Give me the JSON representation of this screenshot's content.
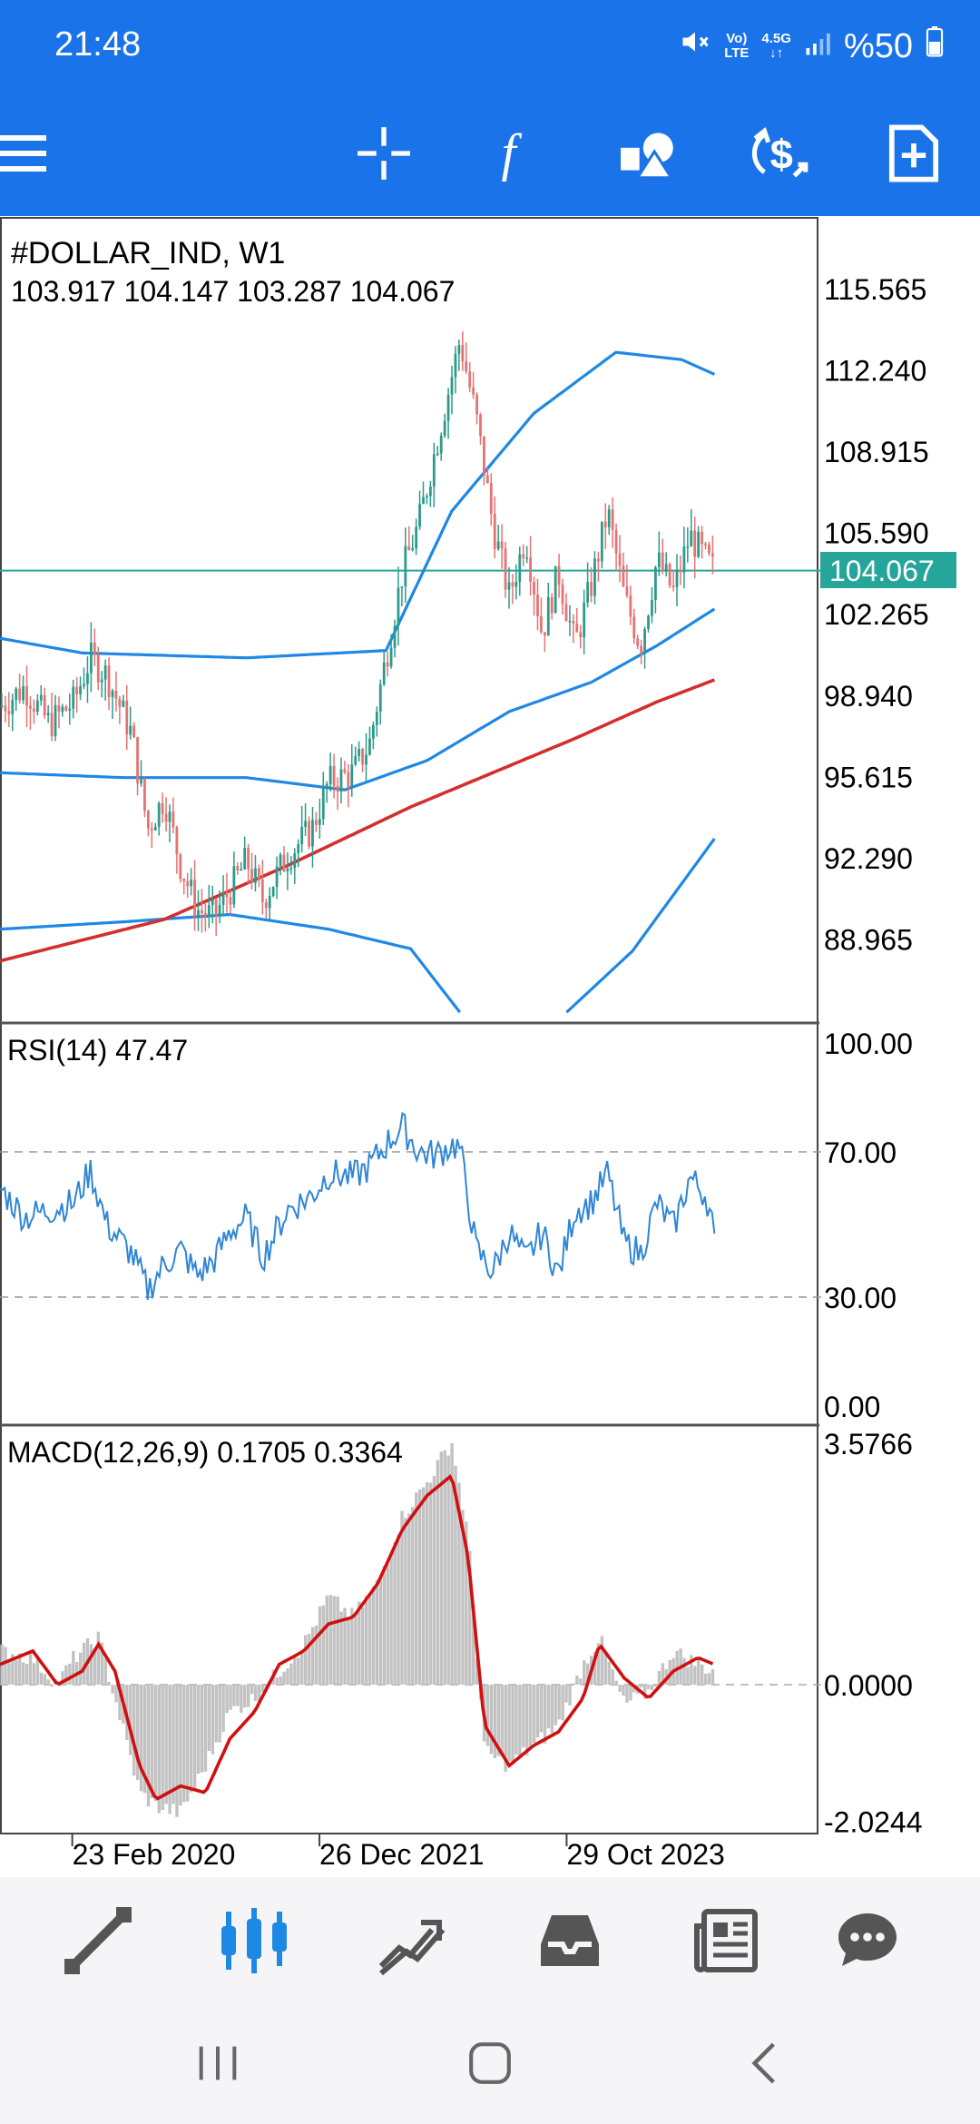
{
  "status_bar": {
    "time": "21:48",
    "volte_top": "Vo)",
    "volte_bottom": "LTE",
    "net_top": "4.5G",
    "net_bottom": "↓↑",
    "battery": "%50",
    "icons": [
      "mute-icon",
      "volte-icon",
      "network-icon",
      "signal-icon",
      "battery-icon"
    ]
  },
  "toolbar": {
    "icons": [
      "menu-icon",
      "crosshair-icon",
      "indicators-icon",
      "objects-icon",
      "trade-icon",
      "new-order-icon"
    ],
    "indicators_glyph": "f"
  },
  "chart": {
    "symbol_label": "#DOLLAR_IND, W1",
    "ohlc_label": "103.917 104.147 103.287 104.067",
    "current_price": "104.067",
    "colors": {
      "background": "#ffffff",
      "bollinger": "#1e88e5",
      "ma": "#d32f2f",
      "price_line": "#26a69a",
      "bull_candle": "#2e9a8a",
      "bear_candle": "#e57373",
      "rsi": "#2f86d6",
      "macd_hist": "#c2c2c2",
      "macd_signal": "#d01010"
    }
  },
  "rsi": {
    "label": "RSI(14) 47.47"
  },
  "macd": {
    "label": "MACD(12,26,9) 0.1705 0.3364"
  },
  "chart_data": [
    {
      "type": "candlestick",
      "title": "#DOLLAR_IND, W1",
      "y_ticks": [
        "115.565",
        "112.240",
        "108.915",
        "105.590",
        "102.265",
        "98.940",
        "95.615",
        "92.290",
        "88.965"
      ],
      "ylim": [
        85.6,
        118.5
      ],
      "current_price": 104.067,
      "x_tick_labels": [
        "23 Feb 2020",
        "26 Dec 2021",
        "29 Oct 2023"
      ],
      "price_path": [
        [
          0,
          98.5
        ],
        [
          0.03,
          99.3
        ],
        [
          0.06,
          97.8
        ],
        [
          0.09,
          98.7
        ],
        [
          0.11,
          100.5
        ],
        [
          0.13,
          99.8
        ],
        [
          0.16,
          97.4
        ],
        [
          0.18,
          93.5
        ],
        [
          0.2,
          94.8
        ],
        [
          0.22,
          92.0
        ],
        [
          0.24,
          90.2
        ],
        [
          0.26,
          89.9
        ],
        [
          0.28,
          91.0
        ],
        [
          0.3,
          92.2
        ],
        [
          0.32,
          90.6
        ],
        [
          0.35,
          92.4
        ],
        [
          0.38,
          93.5
        ],
        [
          0.4,
          95.4
        ],
        [
          0.43,
          95.8
        ],
        [
          0.45,
          97.0
        ],
        [
          0.47,
          100.5
        ],
        [
          0.49,
          104.0
        ],
        [
          0.51,
          106.0
        ],
        [
          0.53,
          109.0
        ],
        [
          0.55,
          112.0
        ],
        [
          0.56,
          113.5
        ],
        [
          0.58,
          110.3
        ],
        [
          0.6,
          106.0
        ],
        [
          0.62,
          103.0
        ],
        [
          0.64,
          105.5
        ],
        [
          0.66,
          101.5
        ],
        [
          0.68,
          104.0
        ],
        [
          0.7,
          101.0
        ],
        [
          0.72,
          103.5
        ],
        [
          0.74,
          106.5
        ],
        [
          0.76,
          103.0
        ],
        [
          0.78,
          101.0
        ],
        [
          0.8,
          104.5
        ],
        [
          0.82,
          103.2
        ],
        [
          0.84,
          105.5
        ],
        [
          0.86,
          104.5
        ],
        [
          0.87,
          104.067
        ]
      ],
      "moving_average": [
        [
          0,
          88.1
        ],
        [
          0.2,
          89.8
        ],
        [
          0.35,
          92.0
        ],
        [
          0.5,
          94.4
        ],
        [
          0.6,
          95.8
        ],
        [
          0.7,
          97.2
        ],
        [
          0.8,
          98.7
        ],
        [
          0.87,
          99.6
        ]
      ],
      "bollinger_upper": [
        [
          0,
          101.3
        ],
        [
          0.1,
          100.7
        ],
        [
          0.3,
          100.5
        ],
        [
          0.47,
          100.8
        ],
        [
          0.55,
          106.5
        ],
        [
          0.65,
          110.5
        ],
        [
          0.75,
          113.0
        ],
        [
          0.83,
          112.7
        ],
        [
          0.87,
          112.1
        ]
      ],
      "bollinger_middle": [
        [
          0,
          95.8
        ],
        [
          0.15,
          95.6
        ],
        [
          0.3,
          95.6
        ],
        [
          0.42,
          95.1
        ],
        [
          0.52,
          96.3
        ],
        [
          0.62,
          98.3
        ],
        [
          0.72,
          99.5
        ],
        [
          0.8,
          101.0
        ],
        [
          0.87,
          102.5
        ]
      ],
      "bollinger_lower": [
        [
          0,
          89.4
        ],
        [
          0.15,
          89.7
        ],
        [
          0.28,
          90.0
        ],
        [
          0.4,
          89.4
        ],
        [
          0.5,
          88.6
        ],
        [
          0.56,
          86.0
        ]
      ],
      "bollinger_lower_2": [
        [
          0.69,
          86.0
        ],
        [
          0.77,
          88.5
        ],
        [
          0.87,
          93.1
        ]
      ]
    },
    {
      "type": "line",
      "title": "RSI(14) 47.47",
      "y_ticks": [
        "100.00",
        "70.00",
        "30.00",
        "0.00"
      ],
      "ylim": [
        0,
        100
      ],
      "levels": [
        70,
        30
      ],
      "series": [
        {
          "values": [
            [
              0,
              60
            ],
            [
              0.03,
              52
            ],
            [
              0.06,
              54
            ],
            [
              0.09,
              56
            ],
            [
              0.11,
              65
            ],
            [
              0.13,
              50
            ],
            [
              0.16,
              42
            ],
            [
              0.18,
              32
            ],
            [
              0.2,
              39
            ],
            [
              0.22,
              43
            ],
            [
              0.24,
              36
            ],
            [
              0.26,
              40
            ],
            [
              0.28,
              48
            ],
            [
              0.3,
              52
            ],
            [
              0.32,
              41
            ],
            [
              0.35,
              54
            ],
            [
              0.38,
              58
            ],
            [
              0.4,
              64
            ],
            [
              0.43,
              63
            ],
            [
              0.45,
              66
            ],
            [
              0.47,
              72
            ],
            [
              0.49,
              77
            ],
            [
              0.51,
              70
            ],
            [
              0.53,
              69
            ],
            [
              0.55,
              72
            ],
            [
              0.56,
              71
            ],
            [
              0.58,
              43
            ],
            [
              0.6,
              37
            ],
            [
              0.62,
              48
            ],
            [
              0.64,
              40
            ],
            [
              0.66,
              48
            ],
            [
              0.68,
              36
            ],
            [
              0.7,
              54
            ],
            [
              0.72,
              56
            ],
            [
              0.74,
              64
            ],
            [
              0.76,
              45
            ],
            [
              0.78,
              42
            ],
            [
              0.8,
              56
            ],
            [
              0.82,
              49
            ],
            [
              0.84,
              63
            ],
            [
              0.86,
              58
            ],
            [
              0.87,
              47.47
            ]
          ]
        }
      ]
    },
    {
      "type": "bar",
      "title": "MACD(12,26,9) 0.1705 0.3364",
      "y_ticks": [
        "3.5766",
        "0.0000",
        "-2.0244"
      ],
      "ylim": [
        -2.2,
        3.7
      ],
      "histogram": [
        [
          0,
          0.5
        ],
        [
          0.04,
          0.4
        ],
        [
          0.07,
          0.0
        ],
        [
          0.09,
          0.4
        ],
        [
          0.12,
          0.7
        ],
        [
          0.14,
          -0.2
        ],
        [
          0.17,
          -1.6
        ],
        [
          0.19,
          -1.8
        ],
        [
          0.22,
          -1.9
        ],
        [
          0.25,
          -1.2
        ],
        [
          0.28,
          -0.4
        ],
        [
          0.31,
          -0.2
        ],
        [
          0.34,
          0.2
        ],
        [
          0.37,
          0.6
        ],
        [
          0.4,
          1.3
        ],
        [
          0.43,
          1.0
        ],
        [
          0.46,
          1.5
        ],
        [
          0.49,
          2.5
        ],
        [
          0.52,
          3.0
        ],
        [
          0.55,
          3.6
        ],
        [
          0.57,
          2.2
        ],
        [
          0.59,
          -1.0
        ],
        [
          0.62,
          -1.2
        ],
        [
          0.65,
          -0.9
        ],
        [
          0.68,
          -0.6
        ],
        [
          0.71,
          0.3
        ],
        [
          0.73,
          0.7
        ],
        [
          0.76,
          -0.3
        ],
        [
          0.79,
          -0.1
        ],
        [
          0.82,
          0.5
        ],
        [
          0.85,
          0.3
        ],
        [
          0.87,
          0.2
        ]
      ],
      "signal": [
        [
          0,
          0.3
        ],
        [
          0.04,
          0.5
        ],
        [
          0.07,
          0.0
        ],
        [
          0.1,
          0.2
        ],
        [
          0.12,
          0.6
        ],
        [
          0.14,
          0.2
        ],
        [
          0.17,
          -1.2
        ],
        [
          0.19,
          -1.7
        ],
        [
          0.22,
          -1.5
        ],
        [
          0.25,
          -1.6
        ],
        [
          0.28,
          -0.8
        ],
        [
          0.31,
          -0.4
        ],
        [
          0.34,
          0.3
        ],
        [
          0.37,
          0.5
        ],
        [
          0.4,
          0.9
        ],
        [
          0.43,
          1.0
        ],
        [
          0.46,
          1.5
        ],
        [
          0.49,
          2.3
        ],
        [
          0.52,
          2.8
        ],
        [
          0.55,
          3.1
        ],
        [
          0.57,
          1.9
        ],
        [
          0.59,
          -0.6
        ],
        [
          0.62,
          -1.2
        ],
        [
          0.65,
          -0.9
        ],
        [
          0.68,
          -0.7
        ],
        [
          0.71,
          -0.2
        ],
        [
          0.73,
          0.6
        ],
        [
          0.76,
          0.1
        ],
        [
          0.79,
          -0.2
        ],
        [
          0.82,
          0.2
        ],
        [
          0.85,
          0.4
        ],
        [
          0.87,
          0.3
        ]
      ]
    }
  ],
  "bottom_nav": {
    "items": [
      "quotes-icon",
      "chart-icon",
      "trade-icon",
      "history-icon",
      "news-icon",
      "messages-icon"
    ],
    "active": "chart-icon"
  },
  "system_nav": {
    "items": [
      "recent-apps-icon",
      "home-icon",
      "back-icon"
    ]
  }
}
